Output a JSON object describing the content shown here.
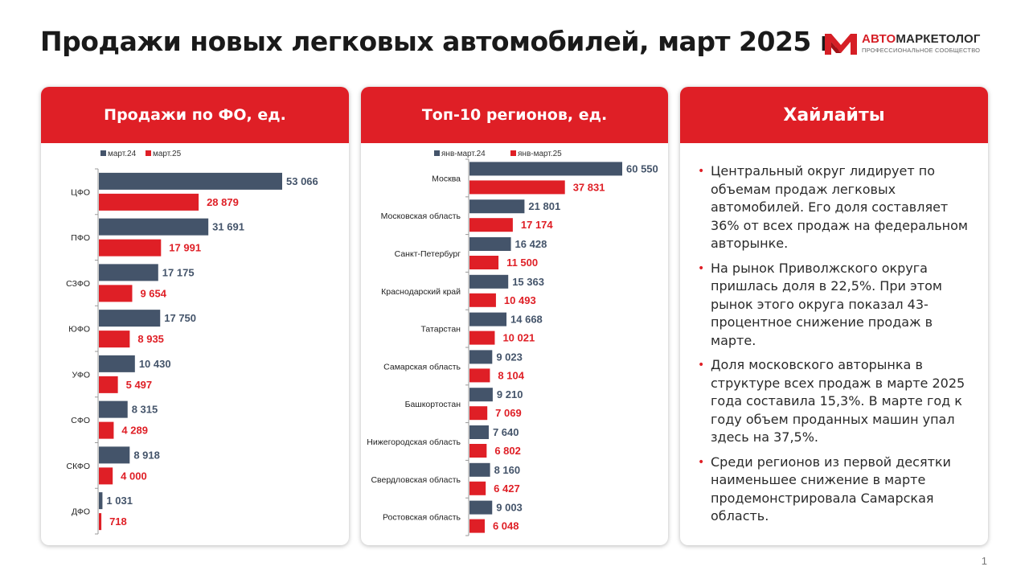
{
  "page": {
    "title": "Продажи новых легковых автомобилей, март 2025 г.",
    "page_number": "1",
    "logo": {
      "brand_red": "АВТО",
      "brand_dark": "МАРКЕТОЛОГ",
      "tagline": "ПРОФЕССИОНАЛЬНОЕ СООБЩЕСТВО",
      "icon": "logo-m-icon"
    },
    "colors": {
      "accent": "#df1f26",
      "series_prev": "#44546a",
      "series_curr": "#df1f26"
    }
  },
  "panels": {
    "fo": {
      "header": "Продажи по ФО, ед."
    },
    "regions": {
      "header": "Топ-10 регионов, ед."
    },
    "highlights": {
      "header": "Хайлайты",
      "items": [
        "Центральный округ лидирует по объемам продаж легковых автомобилей.  Его доля составляет 36% от всех продаж на федеральном авторынке.",
        "На рынок Приволжского округа пришлась доля в  22,5%. При этом рынок этого округа показал 43-процентное снижение продаж в марте.",
        "Доля московского авторынка в структуре всех продаж в марте 2025 года составила 15,3%. В марте год к году объем проданных машин упал здесь на 37,5%.",
        "Среди регионов из первой десятки наименьшее снижение в марте продемонстрировала Самарская область."
      ]
    }
  },
  "chart_data": [
    {
      "type": "bar",
      "orientation": "horizontal",
      "title": "Продажи по ФО, ед.",
      "categories": [
        "ЦФО",
        "ПФО",
        "СЗФО",
        "ЮФО",
        "УФО",
        "СФО",
        "СКФО",
        "ДФО"
      ],
      "series": [
        {
          "name": "март.24",
          "color": "#44546a",
          "values": [
            53066,
            31691,
            17175,
            17750,
            10430,
            8315,
            8918,
            1031
          ],
          "labels": [
            "53 066",
            "31 691",
            "17 175",
            "17 750",
            "10 430",
            "8 315",
            "8 918",
            "1 031"
          ]
        },
        {
          "name": "март.25",
          "color": "#df1f26",
          "values": [
            28879,
            17991,
            9654,
            8935,
            5497,
            4289,
            4000,
            718
          ],
          "labels": [
            "28 879",
            "17 991",
            "9 654",
            "8 935",
            "5 497",
            "4 289",
            "4 000",
            "718"
          ]
        }
      ],
      "legend": "top",
      "grid": false,
      "xlim": [
        0,
        53066
      ]
    },
    {
      "type": "bar",
      "orientation": "horizontal",
      "title": "Топ-10 регионов, ед.",
      "categories": [
        "Москва",
        "Московская область",
        "Санкт-Петербург",
        "Краснодарский край",
        "Татарстан",
        "Самарская область",
        "Башкортостан",
        "Нижегородская область",
        "Свердловская область",
        "Ростовская область"
      ],
      "series": [
        {
          "name": "янв-март.24",
          "color": "#44546a",
          "values": [
            60550,
            21801,
            16428,
            15363,
            14668,
            9023,
            9210,
            7640,
            8160,
            9003
          ],
          "labels": [
            "60 550",
            "21 801",
            "16 428",
            "15 363",
            "14 668",
            "9 023",
            "9 210",
            "7 640",
            "8 160",
            "9 003"
          ]
        },
        {
          "name": "янв-март.25",
          "color": "#df1f26",
          "values": [
            37831,
            17174,
            11500,
            10493,
            10021,
            8104,
            7069,
            6802,
            6427,
            6048
          ],
          "labels": [
            "37 831",
            "17 174",
            "11 500",
            "10 493",
            "10 021",
            "8 104",
            "7 069",
            "6 802",
            "6 427",
            "6 048"
          ]
        }
      ],
      "legend": "top",
      "grid": false,
      "xlim": [
        0,
        60550
      ]
    }
  ]
}
